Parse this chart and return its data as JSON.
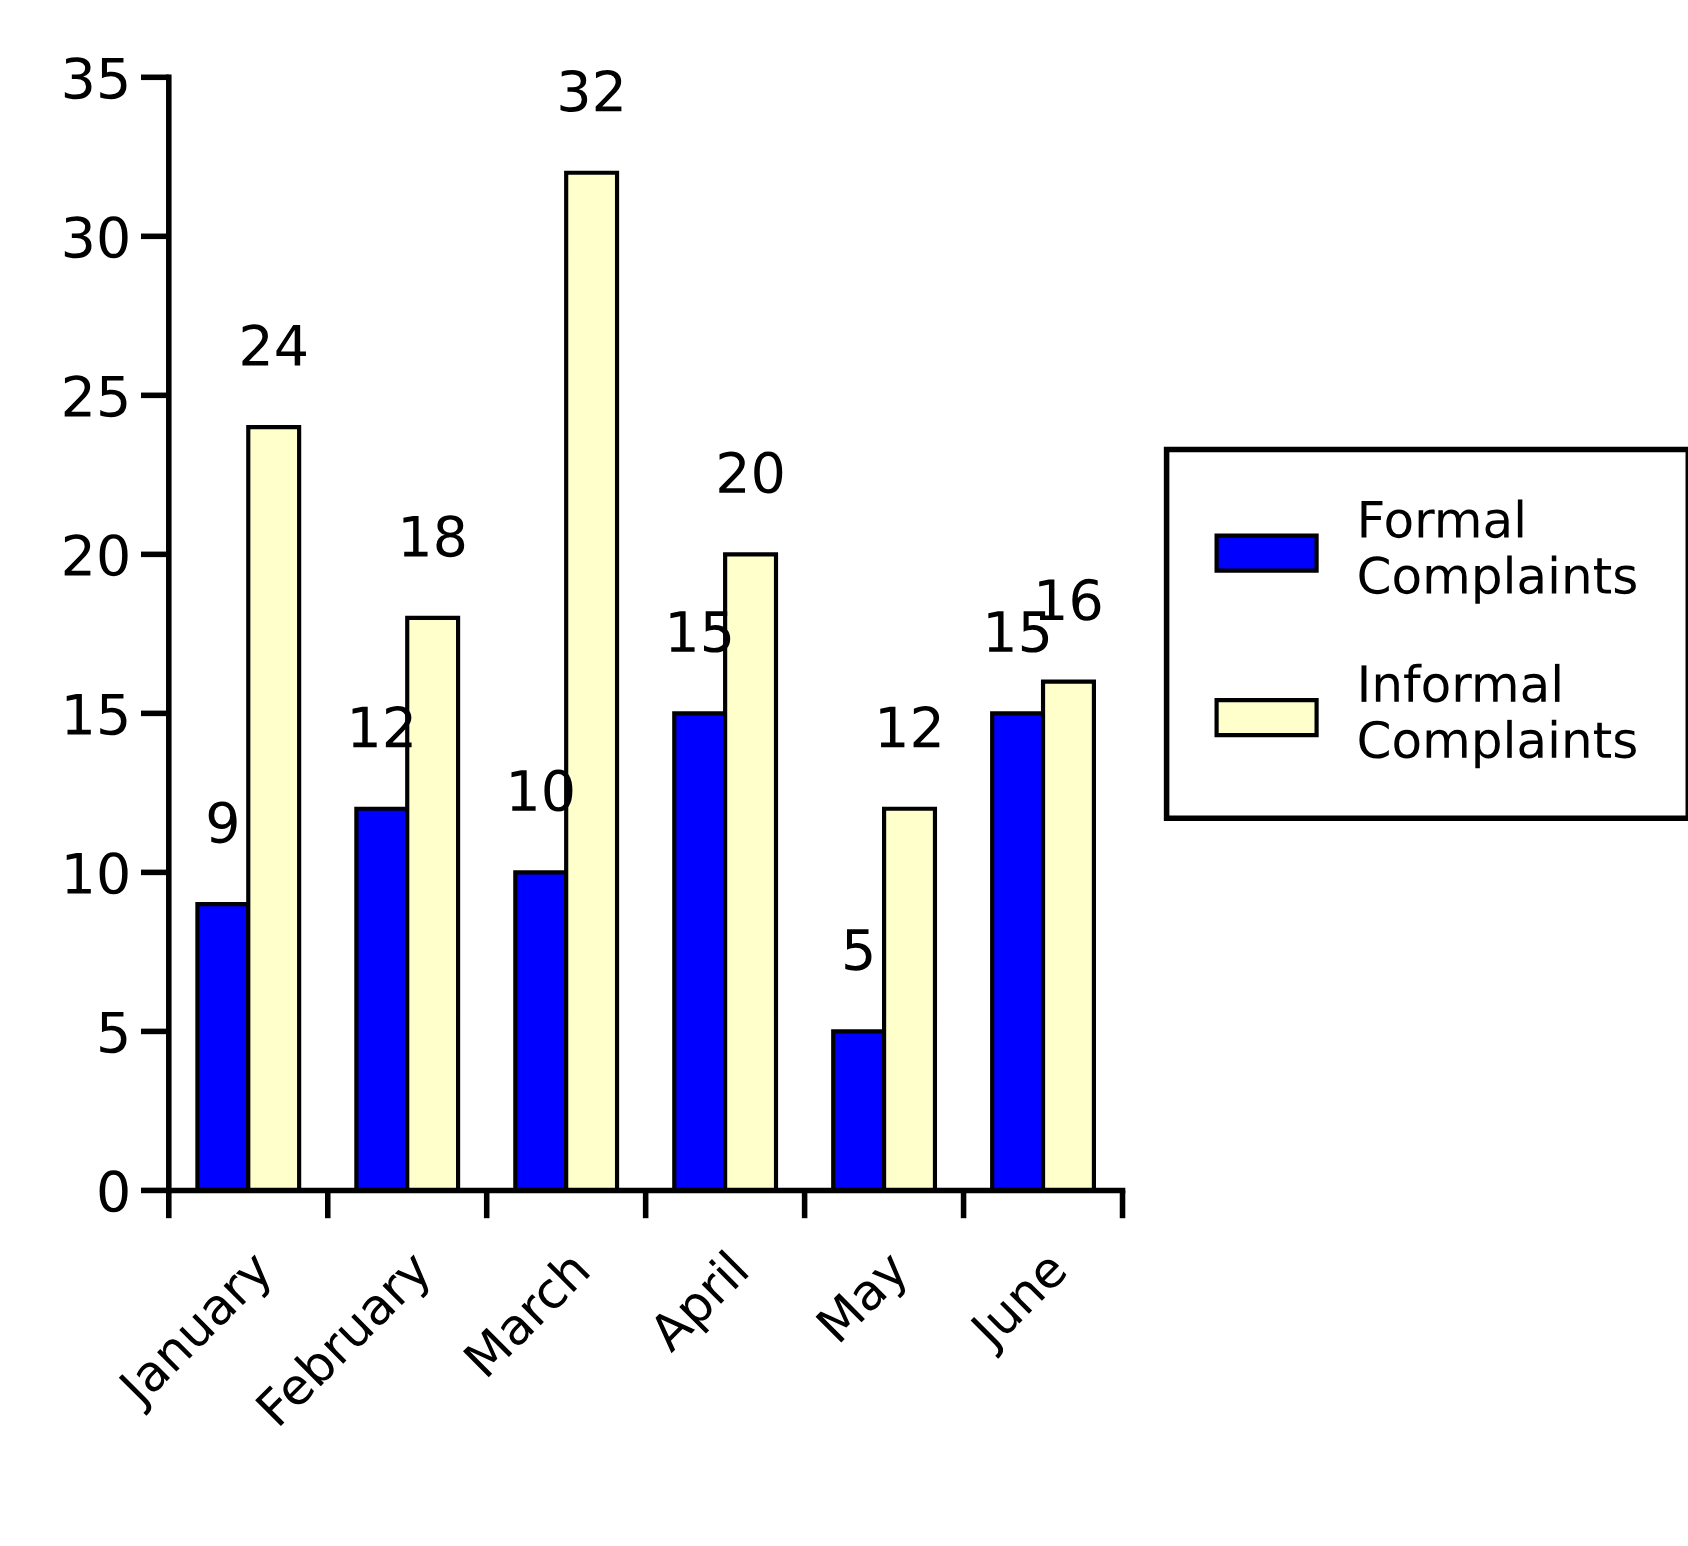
{
  "chart_data": {
    "type": "bar",
    "categories": [
      "January",
      "February",
      "March",
      "April",
      "May",
      "June"
    ],
    "series": [
      {
        "name": "Formal Complaints",
        "color": "#0000ff",
        "values": [
          9,
          12,
          10,
          15,
          5,
          15
        ]
      },
      {
        "name": "Informal Complaints",
        "color": "#ffffcc",
        "values": [
          24,
          18,
          32,
          20,
          12,
          16
        ]
      }
    ],
    "ylim": [
      0,
      35
    ],
    "yticks": [
      0,
      5,
      10,
      15,
      20,
      25,
      30,
      35
    ],
    "data_labels": true,
    "grid": false,
    "legend": "right"
  }
}
